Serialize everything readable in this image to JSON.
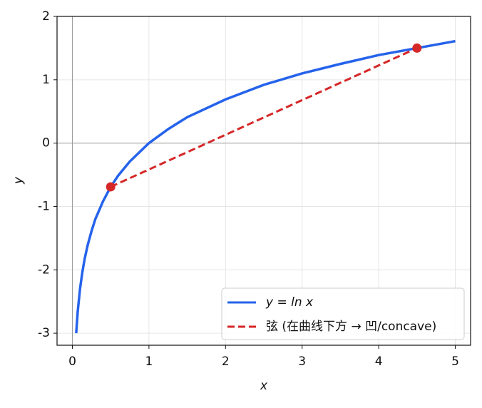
{
  "chart_data": {
    "type": "line",
    "x_label": "x",
    "y_label": "y",
    "series": [
      {
        "name": "y = ln x",
        "color": "#2563eb",
        "style": "solid",
        "x": [
          0.05,
          0.07,
          0.1,
          0.13,
          0.16,
          0.2,
          0.25,
          0.3,
          0.4,
          0.5,
          0.6,
          0.75,
          1,
          1.25,
          1.5,
          2,
          2.5,
          3,
          3.5,
          4,
          4.5,
          5
        ],
        "values": [
          -3.0,
          -2.66,
          -2.3,
          -2.04,
          -1.83,
          -1.61,
          -1.39,
          -1.2,
          -0.92,
          -0.69,
          -0.51,
          -0.29,
          0,
          0.22,
          0.41,
          0.69,
          0.92,
          1.1,
          1.25,
          1.39,
          1.5,
          1.61
        ]
      },
      {
        "name": "弦 (在曲线下方 → 凹/concave)",
        "color": "#d62728",
        "style": "dashed",
        "x": [
          0.5,
          4.5
        ],
        "values": [
          -0.69,
          1.5
        ]
      }
    ],
    "markers": {
      "color": "#d62728",
      "x": [
        0.5,
        4.5
      ],
      "values": [
        -0.69,
        1.5
      ]
    },
    "xlim": [
      -0.2,
      5.2
    ],
    "ylim": [
      -3.19,
      2
    ],
    "xticks": [
      0,
      1,
      2,
      3,
      4,
      5
    ],
    "yticks": [
      -3,
      -2,
      -1,
      0,
      1,
      2
    ],
    "axhline": 0,
    "axvline": 0,
    "grid": true,
    "legend": "lower right"
  }
}
